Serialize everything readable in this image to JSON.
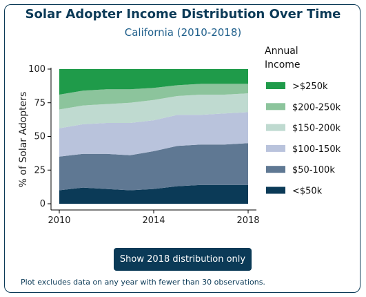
{
  "chart_data": {
    "type": "area",
    "stacked": true,
    "title": "Solar Adopter Income Distribution Over Time",
    "subtitle": "California (2010-2018)",
    "xlabel": "",
    "ylabel": "% of Solar Adopters",
    "xlim": [
      2010,
      2018
    ],
    "ylim": [
      0,
      100
    ],
    "x_ticks": [
      2010,
      2014,
      2018
    ],
    "y_ticks": [
      0,
      25,
      50,
      75,
      100
    ],
    "grid": false,
    "legend_title": "Annual Income",
    "legend_position": "right",
    "x": [
      2010,
      2011,
      2012,
      2013,
      2014,
      2015,
      2016,
      2017,
      2018
    ],
    "series": [
      {
        "name": "<$50k",
        "color": "#0b3a57",
        "values": [
          10,
          12,
          11,
          10,
          11,
          13,
          14,
          14,
          14
        ]
      },
      {
        "name": "$50-100k",
        "color": "#5f7893",
        "values": [
          25,
          25,
          26,
          26,
          28,
          30,
          30,
          30,
          31
        ]
      },
      {
        "name": "$100-150k",
        "color": "#b9c3dc",
        "values": [
          21,
          22,
          23,
          24,
          23,
          23,
          22,
          23,
          23
        ]
      },
      {
        "name": "$150-200k",
        "color": "#bfdad0",
        "values": [
          14,
          14,
          14,
          15,
          15,
          14,
          15,
          14,
          14
        ]
      },
      {
        "name": "$200-250k",
        "color": "#8cc49c",
        "values": [
          11,
          11,
          11,
          10,
          9,
          8,
          8,
          8,
          7
        ]
      },
      {
        "name": ">$250k",
        "color": "#1f9b4a",
        "values": [
          19,
          16,
          15,
          15,
          14,
          12,
          11,
          11,
          11
        ]
      }
    ]
  },
  "button": {
    "label": "Show 2018 distribution only"
  },
  "footnote": "Plot excludes data on any year with fewer than 30 observations."
}
